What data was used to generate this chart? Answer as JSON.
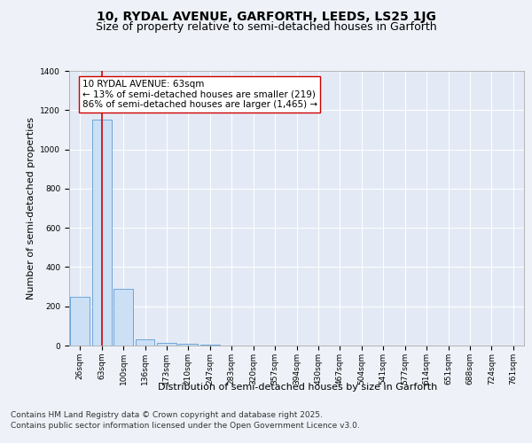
{
  "title_line1": "10, RYDAL AVENUE, GARFORTH, LEEDS, LS25 1JG",
  "title_line2": "Size of property relative to semi-detached houses in Garforth",
  "xlabel": "Distribution of semi-detached houses by size in Garforth",
  "ylabel": "Number of semi-detached properties",
  "categories": [
    "26sqm",
    "63sqm",
    "100sqm",
    "136sqm",
    "173sqm",
    "210sqm",
    "247sqm",
    "283sqm",
    "320sqm",
    "357sqm",
    "394sqm",
    "430sqm",
    "467sqm",
    "504sqm",
    "541sqm",
    "577sqm",
    "614sqm",
    "651sqm",
    "688sqm",
    "724sqm",
    "761sqm"
  ],
  "values": [
    250,
    1150,
    290,
    30,
    15,
    8,
    3,
    0,
    0,
    0,
    0,
    0,
    0,
    0,
    0,
    0,
    0,
    0,
    0,
    0,
    0
  ],
  "bar_color": "#cce0f5",
  "bar_edge_color": "#5b9bd5",
  "vline_x": 1,
  "vline_color": "#cc0000",
  "annotation_text": "10 RYDAL AVENUE: 63sqm\n← 13% of semi-detached houses are smaller (219)\n86% of semi-detached houses are larger (1,465) →",
  "annotation_box_color": "#ffffff",
  "annotation_box_edge": "#cc0000",
  "ylim": [
    0,
    1400
  ],
  "yticks": [
    0,
    200,
    400,
    600,
    800,
    1000,
    1200,
    1400
  ],
  "background_color": "#eef2f8",
  "plot_background": "#e4eaf5",
  "footer_line1": "Contains HM Land Registry data © Crown copyright and database right 2025.",
  "footer_line2": "Contains public sector information licensed under the Open Government Licence v3.0.",
  "title_fontsize": 10,
  "subtitle_fontsize": 9,
  "axis_label_fontsize": 8,
  "tick_fontsize": 6.5,
  "annotation_fontsize": 7.5,
  "footer_fontsize": 6.5
}
